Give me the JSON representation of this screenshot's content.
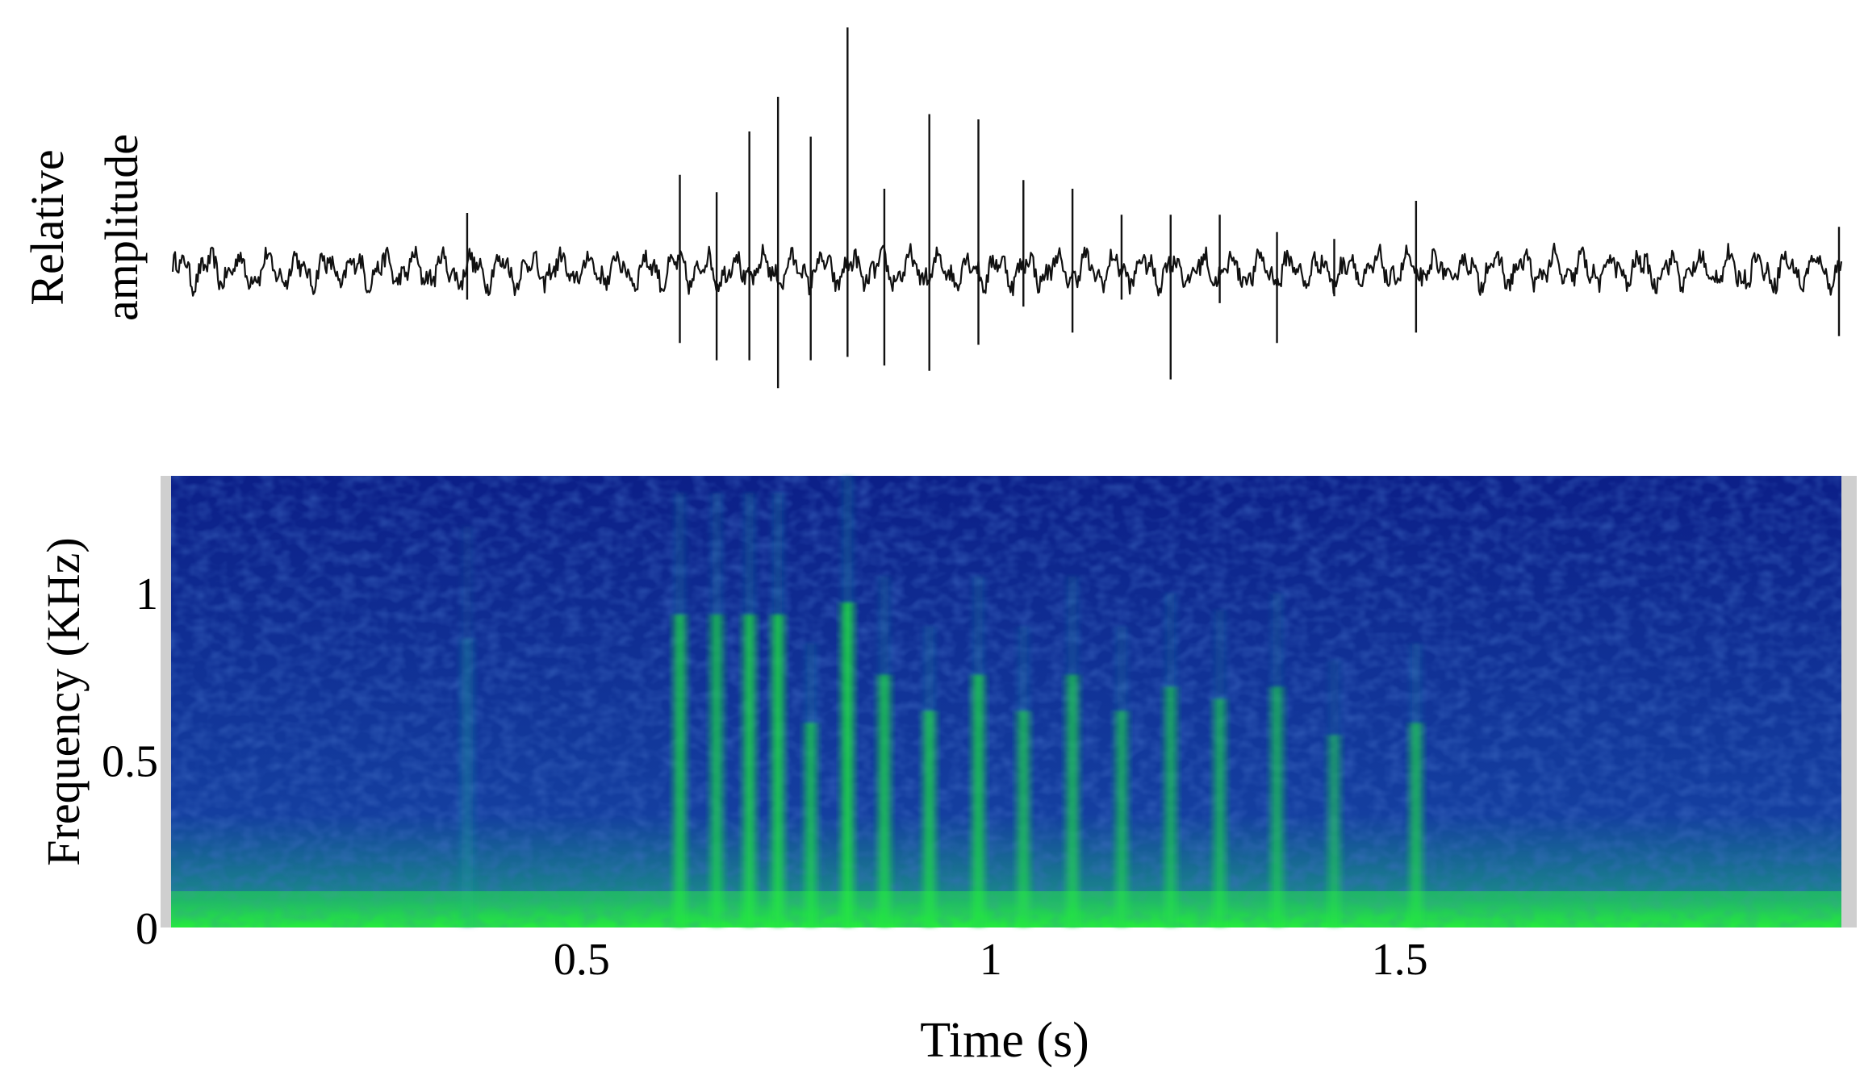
{
  "chart_data": [
    {
      "type": "line",
      "panel": "waveform",
      "ylabel_line1": "Relative",
      "ylabel_line2": "amplitude",
      "xlim": [
        0,
        2.04
      ],
      "ylim": [
        -1,
        1
      ],
      "baseline_amplitude": 0.12,
      "pulses": [
        {
          "t": 0.36,
          "up": 0.33,
          "down": -0.17
        },
        {
          "t": 0.62,
          "up": 0.55,
          "down": -0.42
        },
        {
          "t": 0.665,
          "up": 0.45,
          "down": -0.52
        },
        {
          "t": 0.705,
          "up": 0.8,
          "down": -0.52
        },
        {
          "t": 0.74,
          "up": 1.0,
          "down": -0.68
        },
        {
          "t": 0.78,
          "up": 0.77,
          "down": -0.52
        },
        {
          "t": 0.825,
          "up": 1.4,
          "down": -0.5
        },
        {
          "t": 0.87,
          "up": 0.47,
          "down": -0.55
        },
        {
          "t": 0.925,
          "up": 0.9,
          "down": -0.58
        },
        {
          "t": 0.985,
          "up": 0.87,
          "down": -0.43
        },
        {
          "t": 1.04,
          "up": 0.52,
          "down": -0.21
        },
        {
          "t": 1.1,
          "up": 0.47,
          "down": -0.36
        },
        {
          "t": 1.16,
          "up": 0.32,
          "down": -0.17
        },
        {
          "t": 1.22,
          "up": 0.32,
          "down": -0.63
        },
        {
          "t": 1.28,
          "up": 0.32,
          "down": -0.19
        },
        {
          "t": 1.35,
          "up": 0.22,
          "down": -0.42
        },
        {
          "t": 1.42,
          "up": 0.18,
          "down": -0.15
        },
        {
          "t": 1.52,
          "up": 0.4,
          "down": -0.36
        },
        {
          "t": 2.04,
          "up": 0.25,
          "down": -0.38
        }
      ]
    },
    {
      "type": "heatmap",
      "panel": "spectrogram",
      "xlabel": "Time (s)",
      "ylabel": "Frequency (KHz)",
      "xlim": [
        0,
        2.04
      ],
      "ylim": [
        0,
        1.35
      ],
      "x_ticks": [
        0.5,
        1,
        1.5
      ],
      "x_tick_labels": [
        "0.5",
        "1",
        "1.5"
      ],
      "y_ticks": [
        0,
        0.5,
        1
      ],
      "y_tick_labels": [
        "0",
        "0.5",
        "1"
      ],
      "colormap": [
        "#0a1a7a",
        "#1236a0",
        "#1a6aa8",
        "#18a87a",
        "#10e040",
        "#00ff20"
      ],
      "background_color": "#0d2490",
      "pulses": [
        {
          "t": 0.62,
          "fmax": 1.3,
          "strength": 0.85
        },
        {
          "t": 0.665,
          "fmax": 1.3,
          "strength": 0.8
        },
        {
          "t": 0.705,
          "fmax": 1.3,
          "strength": 0.9
        },
        {
          "t": 0.74,
          "fmax": 1.3,
          "strength": 0.95
        },
        {
          "t": 0.78,
          "fmax": 0.85,
          "strength": 0.8
        },
        {
          "t": 0.825,
          "fmax": 1.35,
          "strength": 1.0
        },
        {
          "t": 0.87,
          "fmax": 1.05,
          "strength": 0.85
        },
        {
          "t": 0.925,
          "fmax": 0.9,
          "strength": 0.85
        },
        {
          "t": 0.985,
          "fmax": 1.05,
          "strength": 0.85
        },
        {
          "t": 1.04,
          "fmax": 0.9,
          "strength": 0.75
        },
        {
          "t": 1.1,
          "fmax": 1.05,
          "strength": 0.75
        },
        {
          "t": 1.16,
          "fmax": 0.9,
          "strength": 0.7
        },
        {
          "t": 1.22,
          "fmax": 1.0,
          "strength": 0.7
        },
        {
          "t": 1.28,
          "fmax": 0.95,
          "strength": 0.7
        },
        {
          "t": 1.35,
          "fmax": 1.0,
          "strength": 0.7
        },
        {
          "t": 1.42,
          "fmax": 0.8,
          "strength": 0.6
        },
        {
          "t": 1.52,
          "fmax": 0.85,
          "strength": 0.75
        },
        {
          "t": 0.36,
          "fmax": 1.2,
          "strength": 0.4
        }
      ]
    }
  ]
}
